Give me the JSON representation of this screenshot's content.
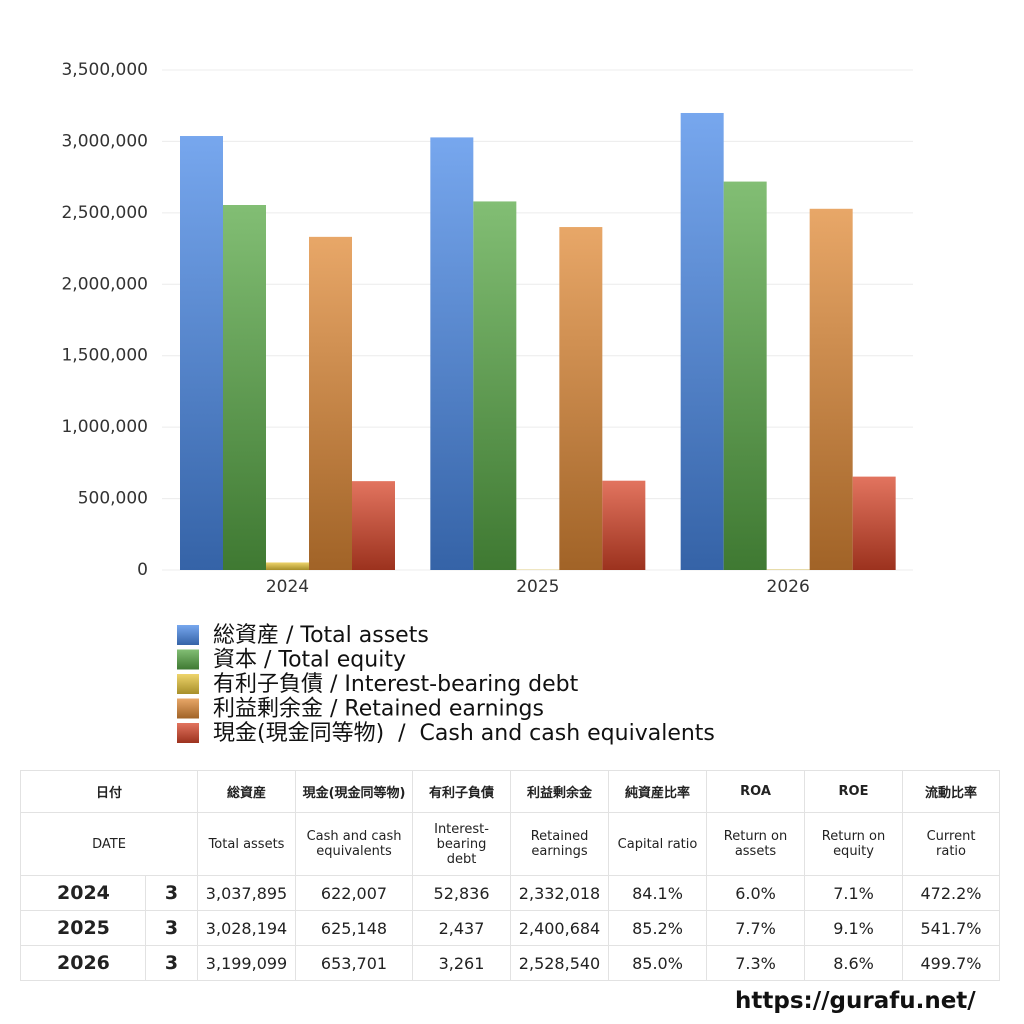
{
  "chart_data": {
    "type": "bar",
    "categories": [
      "2024",
      "2025",
      "2026"
    ],
    "series": [
      {
        "name": "総資産 / Total assets",
        "color": "#4a8ae8",
        "values": [
          3037895,
          3028194,
          3199099
        ]
      },
      {
        "name": "資本 / Total equity",
        "color": "#58a846",
        "values": [
          2555000,
          2580000,
          2719000
        ]
      },
      {
        "name": "有利子負債 / Interest-bearing debt",
        "color": "#e8c63a",
        "values": [
          52836,
          2437,
          3261
        ]
      },
      {
        "name": "利益剰余金 / Retained earnings",
        "color": "#e08a36",
        "values": [
          2332018,
          2400684,
          2528540
        ]
      },
      {
        "name": "現金(現金同等物)  /  Cash and cash equivalents",
        "color": "#d8462a",
        "values": [
          622007,
          625148,
          653701
        ]
      }
    ],
    "ylim": [
      0,
      3500000
    ],
    "yticks": [
      0,
      {
        "value": 500000,
        "label": "500,000"
      },
      {
        "value": 1000000,
        "label": "1,000,000"
      },
      {
        "value": 1500000,
        "label": "1,500,000"
      },
      {
        "value": 2000000,
        "label": "2,000,000"
      },
      {
        "value": 2500000,
        "label": "2,500,000"
      },
      {
        "value": 3000000,
        "label": "3,000,000"
      },
      {
        "value": 3500000,
        "label": "3,500,000"
      }
    ],
    "grid": true
  },
  "table": {
    "header_ja": [
      "日付",
      "総資産",
      "現金(現金同等物)",
      "有利子負債",
      "利益剰余金",
      "純資産比率",
      "ROA",
      "ROE",
      "流動比率"
    ],
    "header_en": [
      "DATE",
      "Total assets",
      "Cash and cash\nequivalents",
      "Interest-\nbearing\ndebt",
      "Retained\nearnings",
      "Capital ratio",
      "Return on\nassets",
      "Return on\nequity",
      "Current\nratio"
    ],
    "rows": [
      [
        "2024",
        "3",
        "3,037,895",
        "622,007",
        "52,836",
        "2,332,018",
        "84.1%",
        "6.0%",
        "7.1%",
        "472.2%"
      ],
      [
        "2025",
        "3",
        "3,028,194",
        "625,148",
        "2,437",
        "2,400,684",
        "85.2%",
        "7.7%",
        "9.1%",
        "541.7%"
      ],
      [
        "2026",
        "3",
        "3,199,099",
        "653,701",
        "3,261",
        "2,528,540",
        "85.0%",
        "7.3%",
        "8.6%",
        "499.7%"
      ]
    ]
  },
  "footer": "https://gurafu.net/"
}
